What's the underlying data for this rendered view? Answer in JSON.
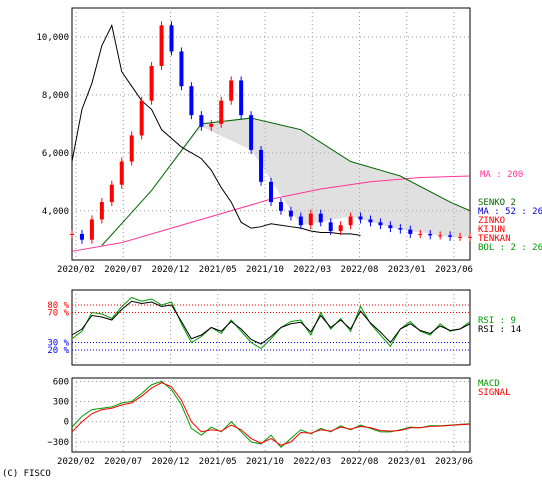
{
  "chart_data": [
    {
      "type": "candlestick",
      "panel": "price",
      "y_ticks": [
        "10,000",
        "8,000",
        "6,000",
        "4,000"
      ],
      "y_tick_values": [
        10000,
        8000,
        6000,
        4000
      ],
      "ylim": [
        2300,
        11000
      ],
      "x_ticks": [
        "2020/02",
        "2020/07",
        "2020/12",
        "2021/05",
        "2021/10",
        "2022/03",
        "2022/08",
        "2023/01",
        "2023/06"
      ],
      "xlim": [
        0,
        40
      ],
      "grid": true,
      "legend": [
        {
          "label": "MA : 200",
          "color": "#ff3399"
        },
        {
          "label": "SENKO 2",
          "color": "#006600"
        },
        {
          "label": "MA : 52 : 26",
          "color": "#0000cc"
        },
        {
          "label": "ZINKO",
          "color": "#ff0000"
        },
        {
          "label": "KIJUN",
          "color": "#ff0000"
        },
        {
          "label": "TENKAN",
          "color": "#ff0000"
        },
        {
          "label": "BOL : 2 : 26",
          "color": "#009900"
        }
      ],
      "series": [
        {
          "name": "close",
          "color": "#0000ff",
          "x": [
            0,
            1,
            2,
            3,
            4,
            5,
            6,
            7,
            8,
            9,
            10,
            11,
            12,
            13,
            14,
            15,
            16,
            17,
            18,
            19,
            20,
            21,
            22,
            23,
            24,
            25,
            26,
            27,
            28,
            29,
            30,
            31,
            32,
            33,
            34,
            35,
            36,
            37,
            38,
            39,
            40
          ],
          "values": [
            3200,
            3000,
            3700,
            4300,
            4900,
            5700,
            6600,
            7800,
            9000,
            10400,
            9500,
            8300,
            7300,
            6900,
            7000,
            7800,
            8500,
            7300,
            6100,
            5000,
            4300,
            4000,
            3800,
            3500,
            3900,
            3600,
            3300,
            3500,
            3800,
            3700,
            3600,
            3500,
            3400,
            3350,
            3200,
            3200,
            3150,
            3150,
            3100,
            3100,
            3100
          ]
        },
        {
          "name": "ZINKO",
          "color": "#000000",
          "x": [
            0,
            1,
            2,
            3,
            4,
            5,
            6,
            7,
            8,
            9,
            10,
            11,
            12,
            13,
            14,
            15,
            16,
            17,
            18,
            19,
            20,
            21,
            22,
            23,
            24,
            25,
            26,
            27,
            28,
            29
          ],
          "values": [
            5700,
            7500,
            8400,
            9700,
            10400,
            8800,
            8300,
            7800,
            7500,
            6800,
            6500,
            6200,
            6000,
            5800,
            5400,
            4800,
            4300,
            3600,
            3400,
            3450,
            3550,
            3500,
            3450,
            3400,
            3300,
            3250,
            3250,
            3200,
            3200,
            3150
          ]
        },
        {
          "name": "MA : 200",
          "color": "#ff3399",
          "x": [
            0,
            5,
            10,
            15,
            20,
            25,
            30,
            35,
            40
          ],
          "values": [
            2600,
            2900,
            3400,
            3900,
            4400,
            4750,
            5000,
            5150,
            5200
          ]
        },
        {
          "name": "SENKO 2",
          "color": "#006600",
          "x": [
            3,
            8,
            13,
            18,
            23,
            28,
            33,
            38,
            40
          ],
          "values": [
            2800,
            4700,
            7000,
            7200,
            6800,
            5700,
            5200,
            4300,
            4000
          ]
        }
      ]
    },
    {
      "type": "line",
      "panel": "rsi",
      "y_levels": [
        {
          "label": "80 %",
          "value": 80,
          "color": "#ff0000"
        },
        {
          "label": "70 %",
          "value": 70,
          "color": "#ff0000"
        },
        {
          "label": "30 %",
          "value": 30,
          "color": "#0000ff"
        },
        {
          "label": "20 %",
          "value": 20,
          "color": "#0000ff"
        }
      ],
      "ylim": [
        0,
        100
      ],
      "xlim": [
        0,
        40
      ],
      "series": [
        {
          "name": "RSI : 9",
          "color": "#009900",
          "x": [
            0,
            1,
            2,
            3,
            4,
            5,
            6,
            7,
            8,
            9,
            10,
            11,
            12,
            13,
            14,
            15,
            16,
            17,
            18,
            19,
            20,
            21,
            22,
            23,
            24,
            25,
            26,
            27,
            28,
            29,
            30,
            31,
            32,
            33,
            34,
            35,
            36,
            37,
            38,
            39,
            40
          ],
          "values": [
            35,
            45,
            70,
            68,
            62,
            78,
            90,
            85,
            88,
            80,
            84,
            55,
            30,
            38,
            50,
            42,
            60,
            45,
            30,
            22,
            35,
            50,
            58,
            60,
            40,
            70,
            48,
            62,
            45,
            78,
            55,
            40,
            25,
            48,
            58,
            45,
            40,
            55,
            45,
            48,
            58
          ]
        },
        {
          "name": "RSI : 14",
          "color": "#000000",
          "x": [
            0,
            1,
            2,
            3,
            4,
            5,
            6,
            7,
            8,
            9,
            10,
            11,
            12,
            13,
            14,
            15,
            16,
            17,
            18,
            19,
            20,
            21,
            22,
            23,
            24,
            25,
            26,
            27,
            28,
            29,
            30,
            31,
            32,
            33,
            34,
            35,
            36,
            37,
            38,
            39,
            40
          ],
          "values": [
            40,
            48,
            66,
            64,
            60,
            74,
            85,
            82,
            84,
            78,
            80,
            58,
            35,
            40,
            50,
            45,
            58,
            48,
            34,
            28,
            38,
            50,
            55,
            57,
            44,
            66,
            50,
            60,
            48,
            72,
            56,
            44,
            30,
            48,
            55,
            46,
            42,
            52,
            46,
            48,
            55
          ]
        }
      ],
      "legend": [
        {
          "label": "RSI : 9",
          "color": "#009900"
        },
        {
          "label": "RSI : 14",
          "color": "#000000"
        }
      ]
    },
    {
      "type": "line",
      "panel": "macd",
      "y_ticks": [
        "600",
        "300",
        "0",
        "−300"
      ],
      "y_tick_values": [
        600,
        300,
        0,
        -300
      ],
      "ylim": [
        -450,
        650
      ],
      "x_ticks": [
        "2020/02",
        "2020/07",
        "2020/12",
        "2021/05",
        "2021/10",
        "2022/03",
        "2022/08",
        "2023/01",
        "2023/06"
      ],
      "xlim": [
        0,
        40
      ],
      "series": [
        {
          "name": "MACD",
          "color": "#009900",
          "x": [
            0,
            1,
            2,
            3,
            4,
            5,
            6,
            7,
            8,
            9,
            10,
            11,
            12,
            13,
            14,
            15,
            16,
            17,
            18,
            19,
            20,
            21,
            22,
            23,
            24,
            25,
            26,
            27,
            28,
            29,
            30,
            31,
            32,
            33,
            34,
            35,
            36,
            37,
            38,
            39,
            40
          ],
          "values": [
            -80,
            80,
            180,
            200,
            220,
            280,
            300,
            420,
            550,
            600,
            480,
            250,
            -100,
            -200,
            -80,
            -150,
            0,
            -150,
            -300,
            -330,
            -200,
            -380,
            -250,
            -120,
            -180,
            -100,
            -150,
            -60,
            -120,
            -50,
            -100,
            -150,
            -150,
            -120,
            -80,
            -90,
            -60,
            -60,
            -50,
            -40,
            -30
          ]
        },
        {
          "name": "SIGNAL",
          "color": "#ff0000",
          "x": [
            0,
            1,
            2,
            3,
            4,
            5,
            6,
            7,
            8,
            9,
            10,
            11,
            12,
            13,
            14,
            15,
            16,
            17,
            18,
            19,
            20,
            21,
            22,
            23,
            24,
            25,
            26,
            27,
            28,
            29,
            30,
            31,
            32,
            33,
            34,
            35,
            36,
            37,
            38,
            39,
            40
          ],
          "values": [
            -150,
            0,
            120,
            180,
            200,
            250,
            280,
            380,
            500,
            580,
            520,
            320,
            0,
            -150,
            -120,
            -140,
            -50,
            -120,
            -250,
            -320,
            -250,
            -350,
            -300,
            -160,
            -170,
            -120,
            -140,
            -80,
            -110,
            -70,
            -90,
            -130,
            -140,
            -130,
            -90,
            -90,
            -70,
            -65,
            -55,
            -45,
            -35
          ]
        }
      ],
      "legend": [
        {
          "label": "MACD",
          "color": "#009900"
        },
        {
          "label": "SIGNAL",
          "color": "#ff0000"
        }
      ]
    }
  ],
  "copyright": "(C) FISCO"
}
